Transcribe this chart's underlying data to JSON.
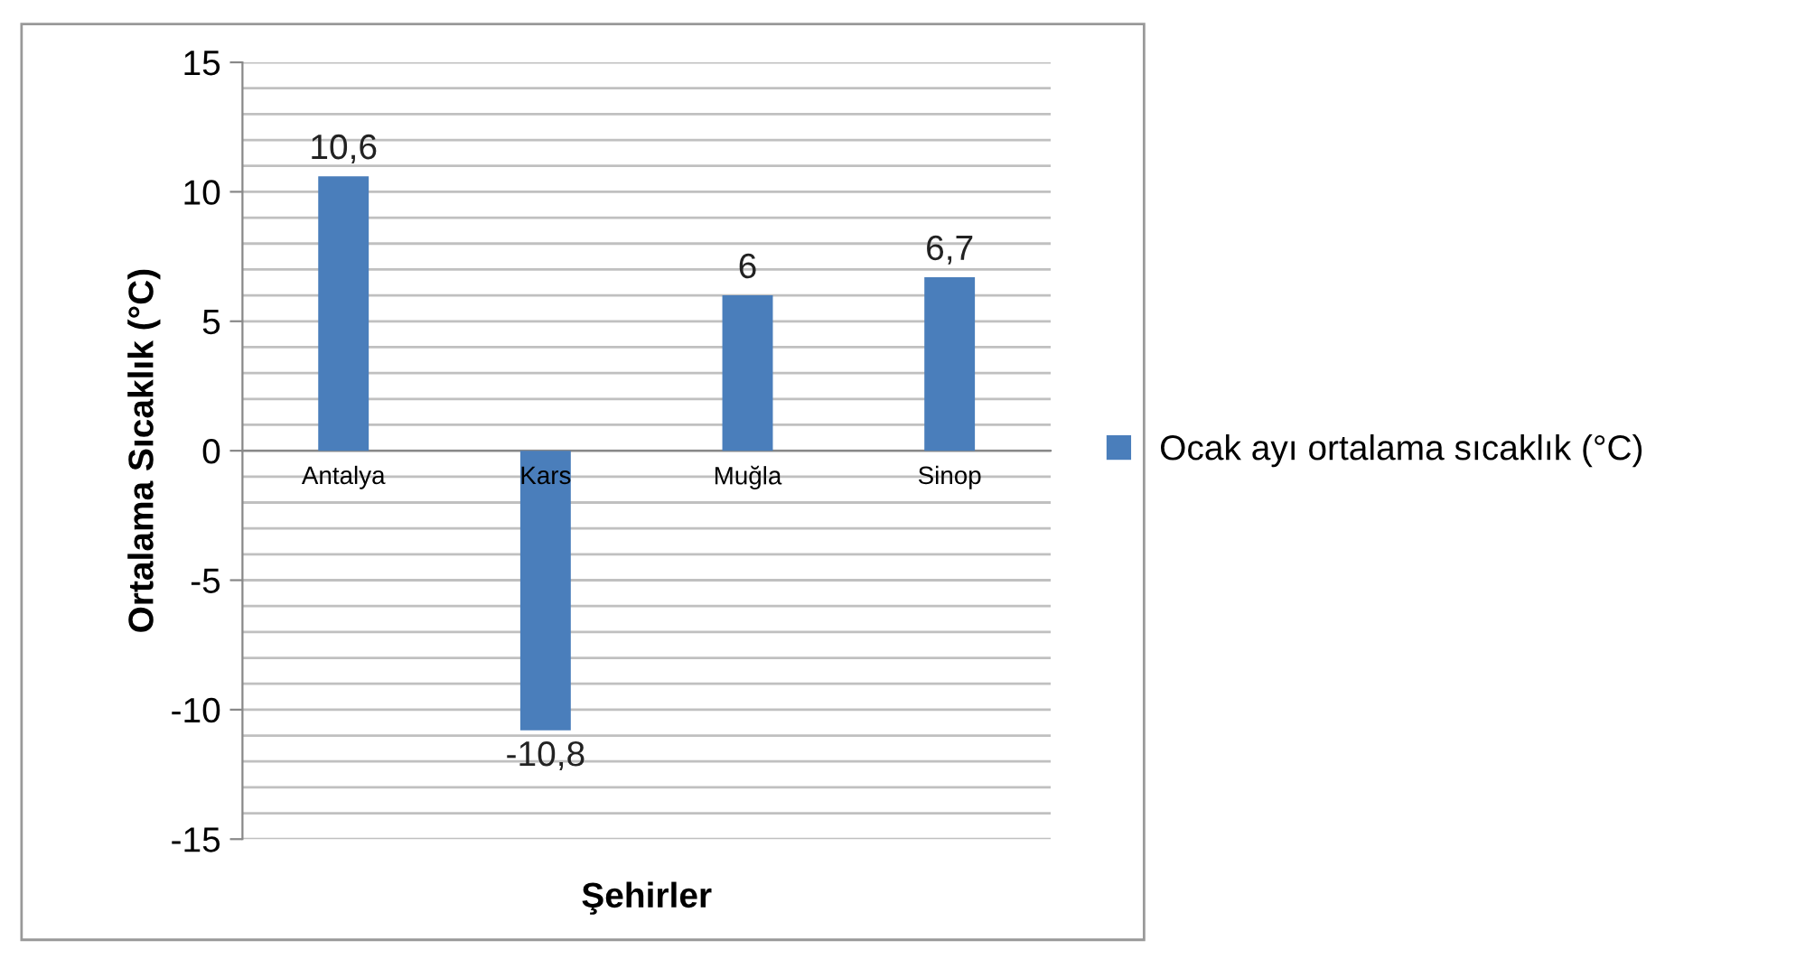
{
  "chart_data": {
    "type": "bar",
    "xlabel": "Şehirler",
    "ylabel": "Ortalama Sıcaklık (°C)",
    "categories": [
      "Antalya",
      "Kars",
      "Muğla",
      "Sinop"
    ],
    "series": [
      {
        "name": "Ocak ayı ortalama sıcaklık (°C)",
        "color": "#4a7ebb",
        "values": [
          10.6,
          -10.8,
          6,
          6.7
        ],
        "value_labels": [
          "10,6",
          "-10,8",
          "6",
          "6,7"
        ]
      }
    ],
    "ylim": [
      -15,
      15
    ],
    "yticks": [
      -15,
      {
        "value": -14,
        "label": null
      },
      {
        "value": -13,
        "label": null
      },
      {
        "value": -12,
        "label": null
      },
      {
        "value": -11,
        "label": null
      },
      -10,
      {
        "value": -9,
        "label": null
      },
      {
        "value": -8,
        "label": null
      },
      {
        "value": -7,
        "label": null
      },
      {
        "value": -6,
        "label": null
      },
      -5,
      {
        "value": -4,
        "label": null
      },
      {
        "value": -3,
        "label": null
      },
      {
        "value": -2,
        "label": null
      },
      {
        "value": -1,
        "label": null
      },
      0,
      {
        "value": 1,
        "label": null
      },
      {
        "value": 2,
        "label": null
      },
      {
        "value": 3,
        "label": null
      },
      {
        "value": 4,
        "label": null
      },
      5,
      {
        "value": 6,
        "label": null
      },
      {
        "value": 7,
        "label": null
      },
      {
        "value": 8,
        "label": null
      },
      {
        "value": 9,
        "label": null
      },
      10,
      {
        "value": 11,
        "label": null
      },
      {
        "value": 12,
        "label": null
      },
      {
        "value": 13,
        "label": null
      },
      {
        "value": 14,
        "label": null
      },
      15
    ],
    "grid": "y",
    "legend": "right"
  }
}
